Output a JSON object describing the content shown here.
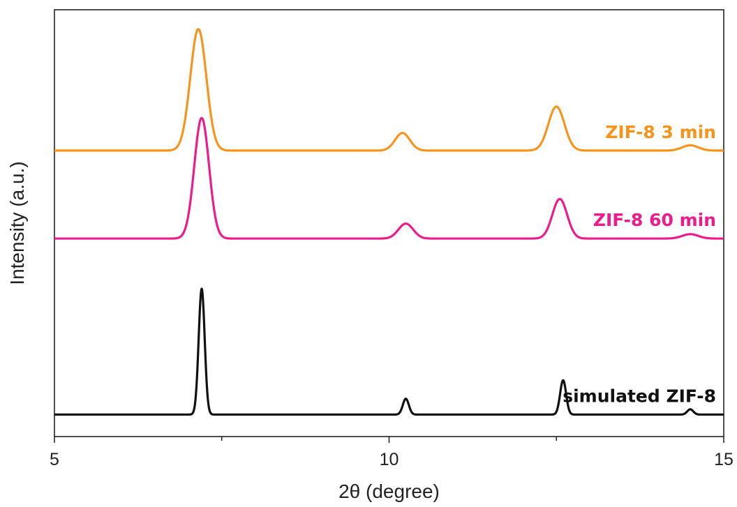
{
  "chart_data": {
    "type": "line",
    "xlabel": "2θ (degree)",
    "ylabel": "Intensity (a.u.)",
    "xlim": [
      5,
      15
    ],
    "x_ticks": [
      5,
      10,
      15
    ],
    "x_tick_labels": [
      "5",
      "10",
      "15"
    ],
    "grid": false,
    "y_ticks_shown": false,
    "series": [
      {
        "name": "ZIF-8 3 min",
        "color": "#f7941d",
        "baseline": 3.0,
        "peaks": [
          {
            "x": 7.15,
            "height": 1.38,
            "width": 0.12
          },
          {
            "x": 10.2,
            "height": 0.2,
            "width": 0.11
          },
          {
            "x": 12.5,
            "height": 0.5,
            "width": 0.12
          },
          {
            "x": 14.5,
            "height": 0.06,
            "width": 0.12
          }
        ]
      },
      {
        "name": "ZIF-8 60 min",
        "color": "#ec1c8c",
        "baseline": 2.0,
        "peaks": [
          {
            "x": 7.2,
            "height": 1.37,
            "width": 0.11
          },
          {
            "x": 10.25,
            "height": 0.17,
            "width": 0.11
          },
          {
            "x": 12.55,
            "height": 0.45,
            "width": 0.11
          },
          {
            "x": 14.5,
            "height": 0.05,
            "width": 0.12
          }
        ]
      },
      {
        "name": "simulated ZIF-8",
        "color": "#111111",
        "baseline": 0.0,
        "peaks": [
          {
            "x": 7.2,
            "height": 1.43,
            "width": 0.045
          },
          {
            "x": 10.25,
            "height": 0.18,
            "width": 0.045
          },
          {
            "x": 12.6,
            "height": 0.39,
            "width": 0.045
          },
          {
            "x": 14.5,
            "height": 0.06,
            "width": 0.045
          }
        ]
      }
    ]
  }
}
